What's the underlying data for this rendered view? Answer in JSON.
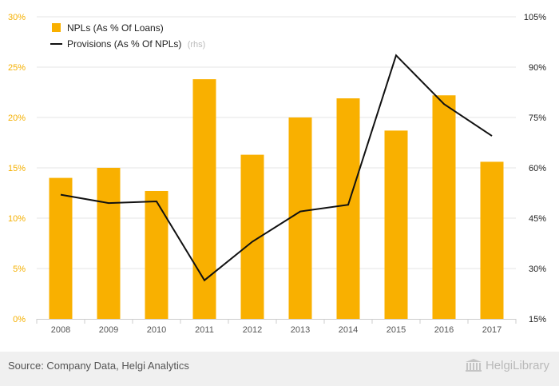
{
  "colors": {
    "bar": "#f9b000",
    "line": "#111111",
    "grid": "#e6e6e6",
    "left_axis_text": "#f5b000"
  },
  "chart_data": {
    "type": "bar",
    "categories": [
      "2008",
      "2009",
      "2010",
      "2011",
      "2012",
      "2013",
      "2014",
      "2015",
      "2016",
      "2017"
    ],
    "series": [
      {
        "name": "NPLs (As % Of Loans)",
        "type": "bar",
        "axis": "left",
        "values": [
          14.0,
          15.0,
          12.7,
          23.8,
          16.3,
          20.0,
          21.9,
          18.7,
          22.2,
          15.6
        ]
      },
      {
        "name": "Provisions (As % Of NPLs)",
        "axis_note": "(rhs)",
        "type": "line",
        "axis": "right",
        "values": [
          52.0,
          49.5,
          50.0,
          26.5,
          38.0,
          47.0,
          49.0,
          93.5,
          79.0,
          69.5
        ]
      }
    ],
    "y_left": {
      "ylim": [
        0,
        30
      ],
      "ticks": [
        0,
        5,
        10,
        15,
        20,
        25,
        30
      ],
      "tick_labels": [
        "0%",
        "5%",
        "10%",
        "15%",
        "20%",
        "25%",
        "30%"
      ]
    },
    "y_right": {
      "ylim": [
        15,
        105
      ],
      "ticks": [
        15,
        30,
        45,
        60,
        75,
        90,
        105
      ],
      "tick_labels": [
        "15%",
        "30%",
        "45%",
        "60%",
        "75%",
        "90%",
        "105%"
      ]
    },
    "grid": true,
    "legend_placement": "top-left"
  },
  "footer": {
    "source": "Source: Company Data, Helgi Analytics",
    "logo_text": "HelgiLibrary"
  }
}
